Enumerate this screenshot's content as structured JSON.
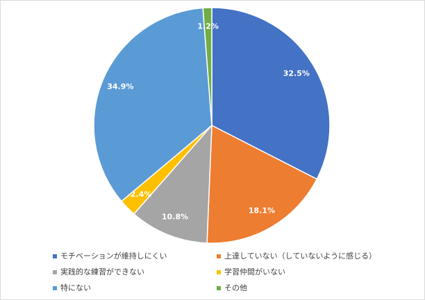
{
  "chart_data": {
    "type": "pie",
    "categories": [
      "モチベーションが維持しにくい",
      "上達していない（していないように感じる）",
      "実践的な練習ができない",
      "学習仲間がいない",
      "特にない",
      "その他"
    ],
    "values": [
      32.5,
      18.1,
      10.8,
      2.4,
      34.9,
      1.2
    ],
    "value_labels": [
      "32.5%",
      "18.1%",
      "10.8%",
      "2.4%",
      "34.9%",
      "1.2%"
    ],
    "colors": [
      "#4472c4",
      "#ed7d31",
      "#a5a5a5",
      "#ffc000",
      "#5b9bd5",
      "#70ad47"
    ],
    "legend": "bottom"
  }
}
